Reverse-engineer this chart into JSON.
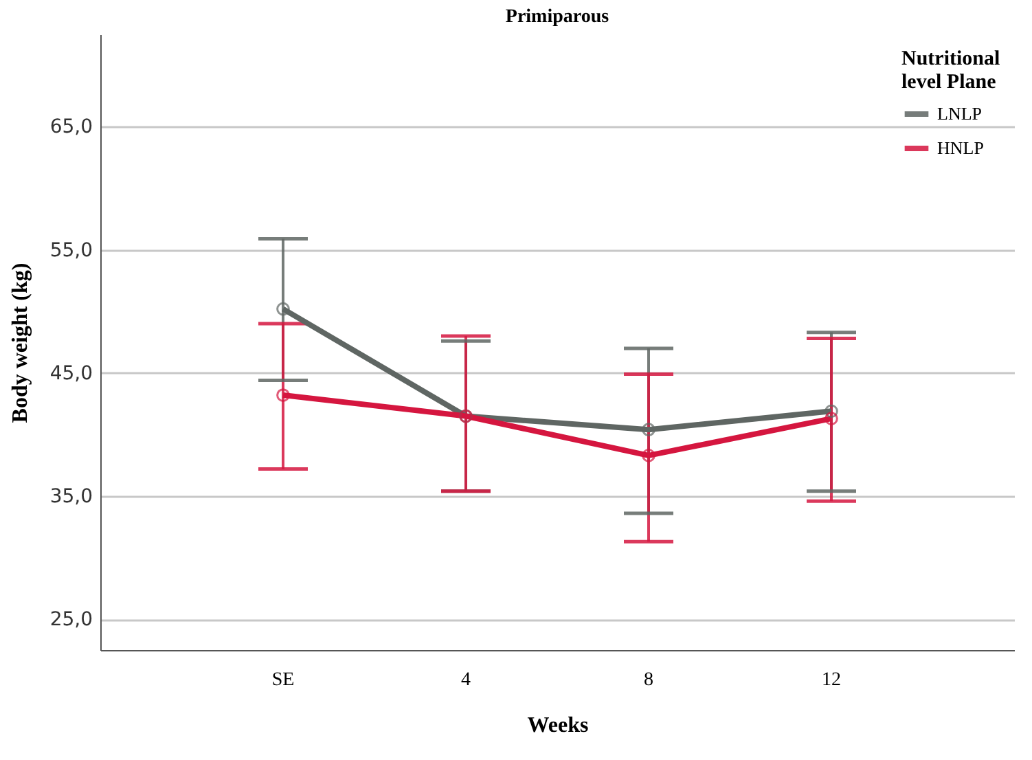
{
  "chart_data": {
    "type": "line",
    "title": "Primiparous",
    "xlabel": "Weeks",
    "ylabel": "Body weight (kg)",
    "legend_title": "Nutritional level Plane",
    "categories": [
      "SE",
      "4",
      "8",
      "12"
    ],
    "series": [
      {
        "name": "LNLP",
        "color": "#5f6663",
        "values": [
          50.2,
          41.5,
          40.4,
          41.9
        ],
        "errors": [
          [
            44.4,
            55.9
          ],
          [
            35.4,
            47.6
          ],
          [
            33.6,
            47.0
          ],
          [
            35.4,
            48.3
          ]
        ]
      },
      {
        "name": "HNLP",
        "color": "#d5163f",
        "values": [
          43.2,
          41.5,
          38.3,
          41.3
        ],
        "errors": [
          [
            37.2,
            49.0
          ],
          [
            35.4,
            48.0
          ],
          [
            31.3,
            44.9
          ],
          [
            34.6,
            47.8
          ]
        ]
      }
    ],
    "ylim": [
      22.5,
      72.5
    ],
    "yticks": [
      {
        "value": 25,
        "label": "25,0"
      },
      {
        "value": 35,
        "label": "35,0"
      },
      {
        "value": 45,
        "label": "45,0"
      },
      {
        "value": 55,
        "label": "55,0"
      },
      {
        "value": 65,
        "label": "65,0"
      }
    ],
    "grid": "y",
    "legend": "top right",
    "marker": "circle",
    "line_style": "solid"
  }
}
